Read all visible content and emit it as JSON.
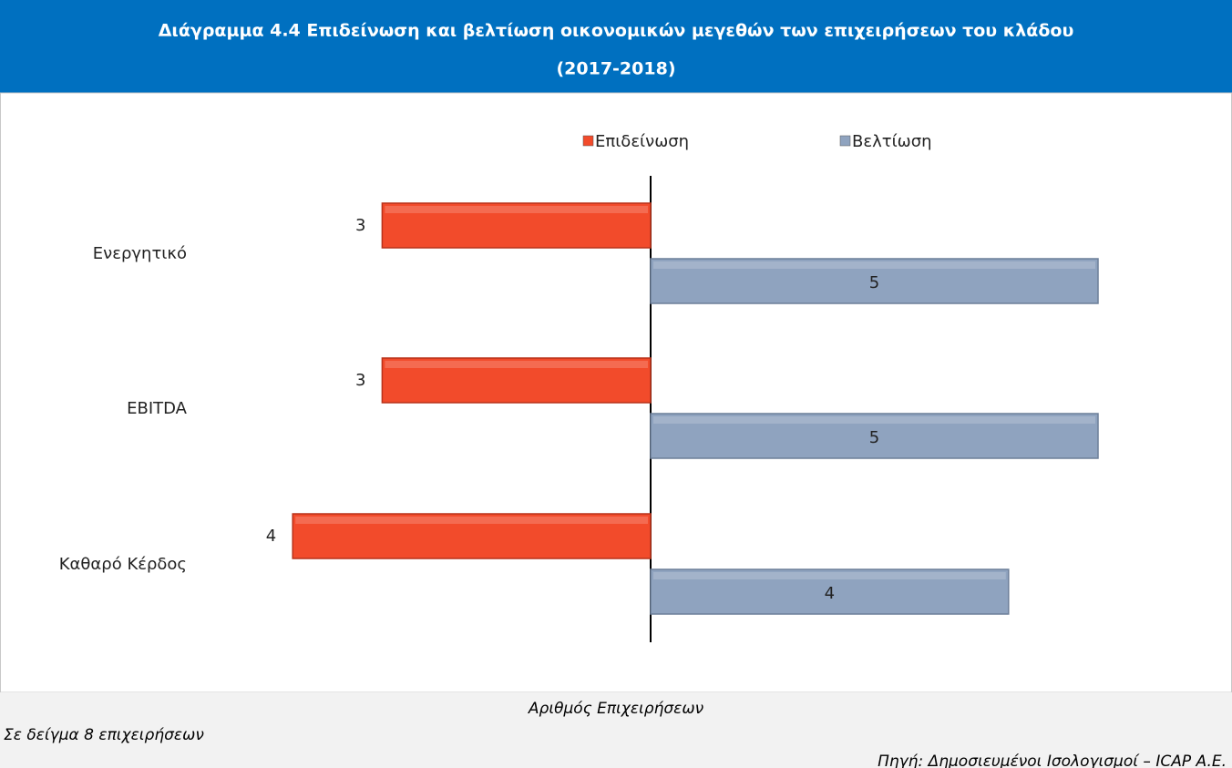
{
  "chart_data": {
    "type": "diverging_bar",
    "title": [
      "Διάγραμμα 4.4 Επιδείνωση και βελτίωση οικονομικών μεγεθών των επιχειρήσεων του κλάδου",
      "(2017-2018)"
    ],
    "categories": [
      "Ενεργητικό",
      "EBITDA",
      "Καθαρό Κέρδος"
    ],
    "series": [
      {
        "name": "Επιδείνωση",
        "color": "#f24b2b",
        "values": [
          3,
          3,
          4
        ]
      },
      {
        "name": "Βελτίωση",
        "color": "#8fa3bf",
        "values": [
          5,
          5,
          4
        ]
      }
    ],
    "xlabel": "Αριθμός Επιχειρήσεων",
    "note": "Σε δείγμα  8 επιχειρήσεων",
    "source": "Πηγή: Δημοσιευμένοι Ισολογισμοί – ICAP A.E."
  }
}
